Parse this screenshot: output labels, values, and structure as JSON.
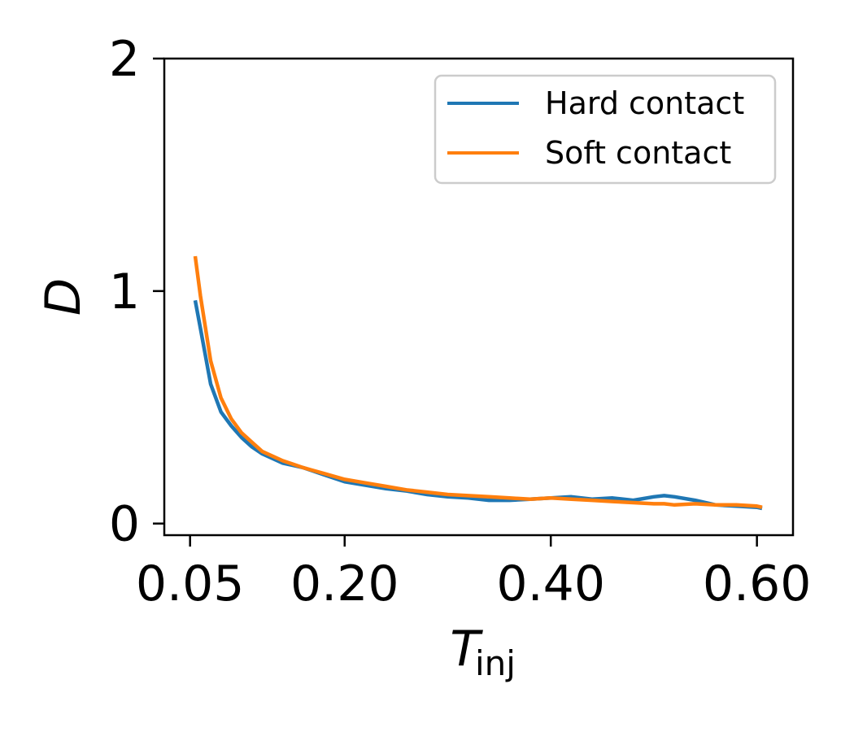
{
  "chart_data": {
    "type": "line",
    "title": "",
    "xlabel": "T",
    "xlabel_sub": "inj",
    "ylabel": "D",
    "xlim": [
      0.025,
      0.635
    ],
    "ylim": [
      -0.05,
      2.0
    ],
    "x_ticks": [
      0.05,
      0.2,
      0.4,
      0.6
    ],
    "x_tick_labels": [
      "0.05",
      "0.20",
      "0.40",
      "0.60"
    ],
    "y_ticks": [
      0,
      1,
      2
    ],
    "y_tick_labels": [
      "0",
      "1",
      "2"
    ],
    "grid": false,
    "legend_position": "top-right",
    "x": [
      0.055,
      0.06,
      0.07,
      0.08,
      0.09,
      0.1,
      0.11,
      0.12,
      0.13,
      0.14,
      0.15,
      0.16,
      0.18,
      0.2,
      0.22,
      0.24,
      0.26,
      0.28,
      0.3,
      0.32,
      0.34,
      0.36,
      0.38,
      0.4,
      0.42,
      0.44,
      0.46,
      0.48,
      0.5,
      0.51,
      0.52,
      0.54,
      0.56,
      0.58,
      0.6,
      0.605
    ],
    "series": [
      {
        "name": "Hard contact",
        "color": "#1f77b4",
        "values": [
          0.96,
          0.84,
          0.6,
          0.48,
          0.42,
          0.37,
          0.33,
          0.3,
          0.28,
          0.26,
          0.25,
          0.24,
          0.21,
          0.18,
          0.165,
          0.15,
          0.14,
          0.125,
          0.115,
          0.11,
          0.1,
          0.1,
          0.105,
          0.11,
          0.115,
          0.105,
          0.11,
          0.1,
          0.115,
          0.12,
          0.115,
          0.1,
          0.08,
          0.075,
          0.07,
          0.065
        ]
      },
      {
        "name": "Soft contact",
        "color": "#ff7f0e",
        "values": [
          1.15,
          0.98,
          0.7,
          0.54,
          0.45,
          0.39,
          0.35,
          0.31,
          0.29,
          0.27,
          0.255,
          0.24,
          0.215,
          0.19,
          0.175,
          0.16,
          0.145,
          0.135,
          0.125,
          0.12,
          0.115,
          0.11,
          0.105,
          0.11,
          0.105,
          0.1,
          0.095,
          0.09,
          0.085,
          0.085,
          0.08,
          0.085,
          0.08,
          0.08,
          0.075,
          0.07
        ]
      }
    ]
  }
}
